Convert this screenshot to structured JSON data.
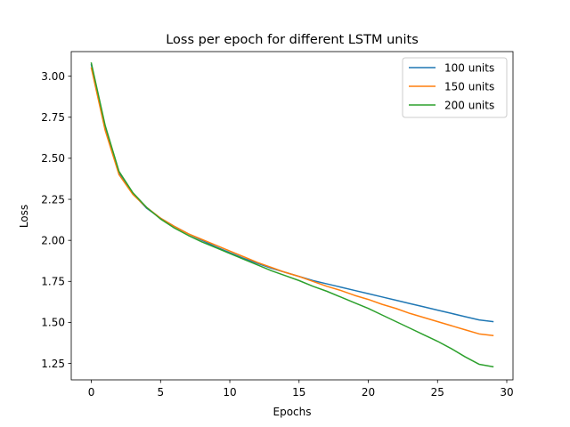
{
  "chart_data": {
    "type": "line",
    "title": "Loss per epoch for different LSTM units",
    "xlabel": "Epochs",
    "ylabel": "Loss",
    "xlim": [
      -1.45,
      30.45
    ],
    "ylim": [
      1.15,
      3.15
    ],
    "xticks": [
      0,
      5,
      10,
      15,
      20,
      25,
      30
    ],
    "xtick_labels": [
      "0",
      "5",
      "10",
      "15",
      "20",
      "25",
      "30"
    ],
    "yticks": [
      1.25,
      1.5,
      1.75,
      2.0,
      2.25,
      2.5,
      2.75,
      3.0
    ],
    "ytick_labels": [
      "1.25",
      "1.50",
      "1.75",
      "2.00",
      "2.25",
      "2.50",
      "2.75",
      "3.00"
    ],
    "grid": false,
    "legend_position": "top-right",
    "x": [
      0,
      1,
      2,
      3,
      4,
      5,
      6,
      7,
      8,
      9,
      10,
      11,
      12,
      13,
      14,
      15,
      16,
      17,
      18,
      19,
      20,
      21,
      22,
      23,
      24,
      25,
      26,
      27,
      28,
      29
    ],
    "series": [
      {
        "name": "100 units",
        "color": "#1f77b4",
        "values": [
          3.07,
          2.69,
          2.41,
          2.285,
          2.195,
          2.135,
          2.085,
          2.04,
          2.0,
          1.96,
          1.925,
          1.89,
          1.86,
          1.83,
          1.805,
          1.78,
          1.755,
          1.735,
          1.715,
          1.695,
          1.675,
          1.655,
          1.635,
          1.615,
          1.595,
          1.575,
          1.555,
          1.535,
          1.515,
          1.505
        ]
      },
      {
        "name": "150 units",
        "color": "#ff7f0e",
        "values": [
          3.05,
          2.67,
          2.4,
          2.28,
          2.2,
          2.135,
          2.085,
          2.04,
          2.005,
          1.97,
          1.935,
          1.9,
          1.865,
          1.835,
          1.805,
          1.78,
          1.75,
          1.72,
          1.695,
          1.665,
          1.64,
          1.61,
          1.585,
          1.555,
          1.53,
          1.505,
          1.48,
          1.455,
          1.43,
          1.42
        ]
      },
      {
        "name": "200 units",
        "color": "#2ca02c",
        "values": [
          3.08,
          2.7,
          2.42,
          2.29,
          2.2,
          2.13,
          2.075,
          2.03,
          1.99,
          1.955,
          1.92,
          1.885,
          1.85,
          1.815,
          1.785,
          1.755,
          1.72,
          1.69,
          1.655,
          1.62,
          1.585,
          1.545,
          1.505,
          1.465,
          1.425,
          1.385,
          1.34,
          1.29,
          1.245,
          1.23
        ]
      }
    ]
  }
}
